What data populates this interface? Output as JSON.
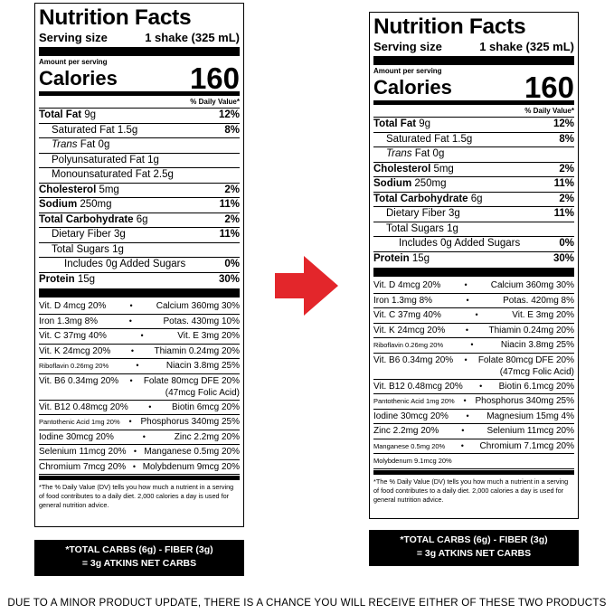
{
  "label_old": {
    "title": "Nutrition Facts",
    "serving_size_label": "Serving size",
    "serving_size_value": "1 shake (325 mL)",
    "amount_per_serving": "Amount per serving",
    "calories_label": "Calories",
    "calories_value": "160",
    "daily_value_header": "% Daily Value*",
    "nutrients": [
      {
        "name": "Total Fat",
        "amount": " 9g",
        "dv": "12%"
      },
      {
        "name": "Saturated Fat 1.5g",
        "amount": "",
        "dv": "8%"
      },
      {
        "name": "Trans",
        "amount": " Fat 0g",
        "dv": ""
      },
      {
        "name": "Polyunsaturated Fat 1g",
        "amount": "",
        "dv": ""
      },
      {
        "name": "Monounsaturated Fat 2.5g",
        "amount": "",
        "dv": ""
      },
      {
        "name": "Cholesterol",
        "amount": " 5mg",
        "dv": "2%"
      },
      {
        "name": "Sodium",
        "amount": " 250mg",
        "dv": "11%"
      },
      {
        "name": "Total Carbohydrate",
        "amount": " 6g",
        "dv": "2%"
      },
      {
        "name": "Dietary Fiber 3g",
        "amount": "",
        "dv": "11%"
      },
      {
        "name": "Total Sugars 1g",
        "amount": "",
        "dv": ""
      },
      {
        "name": "Includes 0g Added Sugars",
        "amount": "",
        "dv": "0%"
      },
      {
        "name": "Protein",
        "amount": " 15g",
        "dv": "30%"
      }
    ],
    "vitamins": [
      [
        "Vit. D 4mcg 20%",
        "Calcium 360mg 30%"
      ],
      [
        "Iron 1.3mg 8%",
        "Potas. 430mg 10%"
      ],
      [
        "Vit. C 37mg 40%",
        "Vit. E 3mg 20%"
      ],
      [
        "Vit. K 24mcg 20%",
        "Thiamin 0.24mg 20%"
      ],
      [
        "Riboflavin 0.26mg 20%",
        "Niacin 3.8mg 25%"
      ],
      [
        "Vit. B6 0.34mg 20%",
        "Folate 80mcg DFE 20%",
        "(47mcg Folic Acid)"
      ],
      [
        "Vit. B12 0.48mcg 20%",
        "Biotin 6mcg 20%"
      ],
      [
        "Pantothenic Acid 1mg 20%",
        "Phosphorus 340mg 25%"
      ],
      [
        "Iodine 30mcg 20%",
        "Zinc 2.2mg 20%"
      ],
      [
        "Selenium 11mcg 20%",
        "Manganese 0.5mg 20%"
      ],
      [
        "Chromium 7mcg 20%",
        "Molybdenum 9mcg 20%"
      ]
    ],
    "footnote": "*The % Daily Value (DV) tells you how much a nutrient in a serving of food contributes to a daily diet. 2,000 calories a day is used for general nutrition advice.",
    "carb_line1": "*TOTAL CARBS (6g) - FIBER (3g)",
    "carb_line2": "= 3g ATKINS NET CARBS"
  },
  "label_new": {
    "title": "Nutrition Facts",
    "serving_size_label": "Serving size",
    "serving_size_value": "1 shake (325 mL)",
    "amount_per_serving": "Amount per serving",
    "calories_label": "Calories",
    "calories_value": "160",
    "daily_value_header": "% Daily Value*",
    "nutrients": [
      {
        "name": "Total Fat",
        "amount": " 9g",
        "dv": "12%"
      },
      {
        "name": "Saturated Fat 1.5g",
        "amount": "",
        "dv": "8%"
      },
      {
        "name": "Trans",
        "amount": " Fat 0g",
        "dv": ""
      },
      {
        "name": "Cholesterol",
        "amount": " 5mg",
        "dv": "2%"
      },
      {
        "name": "Sodium",
        "amount": " 250mg",
        "dv": "11%"
      },
      {
        "name": "Total Carbohydrate",
        "amount": " 6g",
        "dv": "2%"
      },
      {
        "name": "Dietary Fiber 3g",
        "amount": "",
        "dv": "11%"
      },
      {
        "name": "Total Sugars 1g",
        "amount": "",
        "dv": ""
      },
      {
        "name": "Includes 0g Added Sugars",
        "amount": "",
        "dv": "0%"
      },
      {
        "name": "Protein",
        "amount": " 15g",
        "dv": "30%"
      }
    ],
    "vitamins": [
      [
        "Vit. D 4mcg 20%",
        "Calcium 360mg 30%"
      ],
      [
        "Iron 1.3mg 8%",
        "Potas. 420mg 8%"
      ],
      [
        "Vit. C 37mg 40%",
        "Vit. E 3mg 20%"
      ],
      [
        "Vit. K 24mcg 20%",
        "Thiamin 0.24mg 20%"
      ],
      [
        "Riboflavin 0.26mg 20%",
        "Niacin 3.8mg 25%"
      ],
      [
        "Vit. B6 0.34mg 20%",
        "Folate 80mcg DFE 20%",
        "(47mcg Folic Acid)"
      ],
      [
        "Vit. B12 0.48mcg 20%",
        "Biotin 6.1mcg 20%"
      ],
      [
        "Pantothenic Acid 1mg 20%",
        "Phosphorus 340mg 25%"
      ],
      [
        "Iodine 30mcg 20%",
        "Magnesium 15mg 4%"
      ],
      [
        "Zinc 2.2mg 20%",
        "Selenium 11mcg 20%"
      ],
      [
        "Manganese 0.5mg 20%",
        "Chromium 7.1mcg 20%"
      ],
      [
        "Molybdenum 9.1mcg 20%",
        ""
      ]
    ],
    "footnote": "*The % Daily Value (DV) tells you how much a nutrient in a serving of food contributes to a daily diet. 2,000 calories a day is used for general nutrition advice.",
    "carb_line1": "*TOTAL CARBS (6g) - FIBER (3g)",
    "carb_line2": "= 3g ATKINS NET CARBS"
  },
  "arrow": {
    "icon": "right-arrow-icon",
    "color": "#e3262b"
  },
  "disclaimer": "DUE TO A MINOR PRODUCT UPDATE, THERE IS A CHANCE YOU WILL RECEIVE EITHER OF THESE TWO PRODUCTS"
}
